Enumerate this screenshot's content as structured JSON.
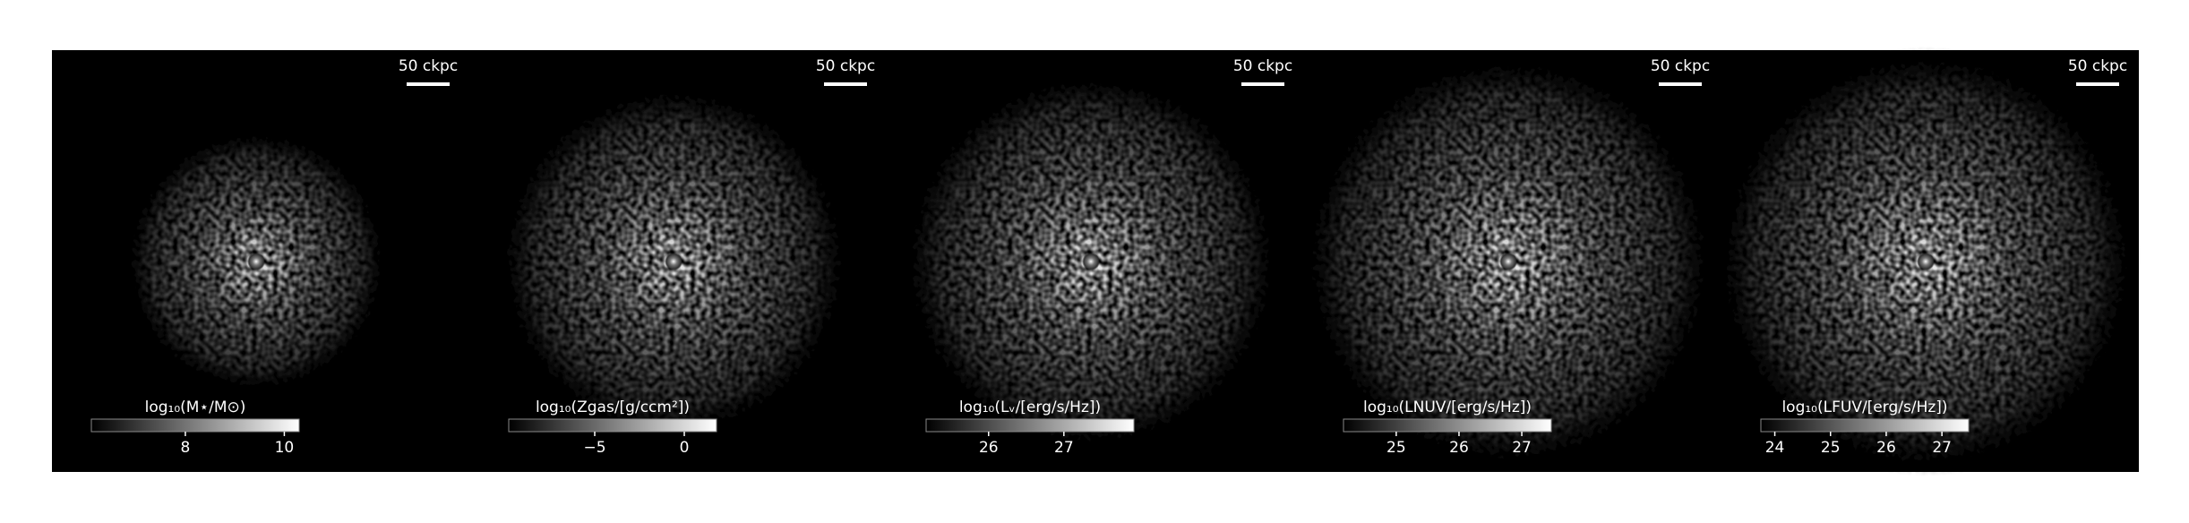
{
  "chart_data": [
    {
      "type": "image",
      "scale_bar_label": "50 ckpc",
      "colorbar_label": "log₁₀(M⋆/M⊙)",
      "colorbar_lim": [
        6.1,
        10.3
      ],
      "colorbar_ticks": [
        8,
        10
      ]
    },
    {
      "type": "image",
      "scale_bar_label": "50 ckpc",
      "colorbar_label": "log₁₀(Zgas/[g/ccm²])",
      "colorbar_lim": [
        -9.8,
        1.8
      ],
      "colorbar_ticks": [
        {
          "value": -5,
          "label": "−5"
        },
        0
      ]
    },
    {
      "type": "image",
      "scale_bar_label": "50 ckpc",
      "colorbar_label": "log₁₀(Lᵥ/[erg/s/Hz])",
      "colorbar_lim": [
        25.17,
        27.93
      ],
      "colorbar_ticks": [
        26,
        27
      ]
    },
    {
      "type": "image",
      "scale_bar_label": "50 ckpc",
      "colorbar_label": "log₁₀(LNUV/[erg/s/Hz])",
      "colorbar_lim": [
        24.16,
        27.47
      ],
      "colorbar_ticks": [
        25,
        26,
        27
      ]
    },
    {
      "type": "image",
      "scale_bar_label": "50 ckpc",
      "colorbar_label": "log₁₀(LFUV/[erg/s/Hz])",
      "colorbar_lim": [
        23.75,
        27.48
      ],
      "colorbar_ticks": [
        24,
        25,
        26,
        27
      ]
    }
  ]
}
